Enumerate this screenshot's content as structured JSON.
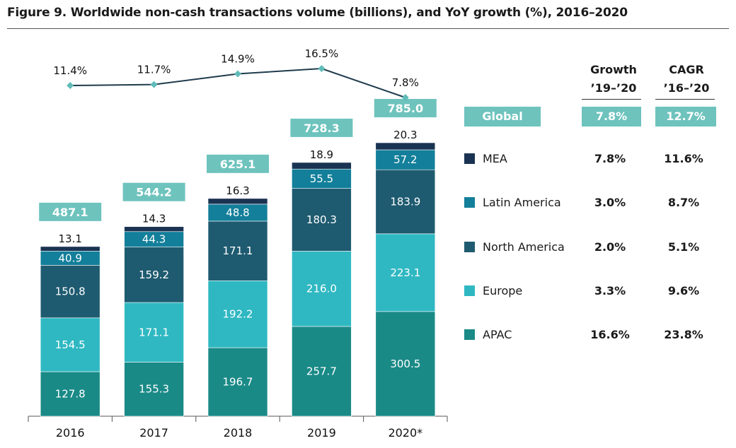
{
  "title": "Figure 9. Worldwide non-cash transactions volume (billions), and YoY growth (%), 2016–2020",
  "colors": {
    "apac": "#1a8a87",
    "europe": "#2fb8c2",
    "north_america": "#1f5b70",
    "latin_america": "#137f9a",
    "mea": "#1a3352",
    "total_box": "#6ec3bd",
    "growth_line": "#1f3b4d",
    "growth_marker": "#5fbcb8"
  },
  "side_table": {
    "growth_header": [
      "Growth",
      "’19–’20"
    ],
    "cagr_header": [
      "CAGR",
      "’16–’20"
    ],
    "global": {
      "label": "Global",
      "growth": "7.8%",
      "cagr": "12.7%"
    },
    "regions": [
      {
        "name": "MEA",
        "growth": "7.8%",
        "cagr": "11.6%",
        "color_key": "mea"
      },
      {
        "name": "Latin America",
        "growth": "3.0%",
        "cagr": "8.7%",
        "color_key": "latin_america"
      },
      {
        "name": "North America",
        "growth": "2.0%",
        "cagr": "5.1%",
        "color_key": "north_america"
      },
      {
        "name": "Europe",
        "growth": "3.3%",
        "cagr": "9.6%",
        "color_key": "europe"
      },
      {
        "name": "APAC",
        "growth": "16.6%",
        "cagr": "23.8%",
        "color_key": "apac"
      }
    ]
  },
  "chart_data": {
    "type": "bar",
    "stacked": true,
    "categories": [
      "2016",
      "2017",
      "2018",
      "2019",
      "2020*"
    ],
    "series": [
      {
        "name": "APAC",
        "color_key": "apac",
        "values": [
          127.8,
          155.3,
          196.7,
          257.7,
          300.5
        ]
      },
      {
        "name": "Europe",
        "color_key": "europe",
        "values": [
          154.5,
          171.1,
          192.2,
          216.0,
          223.1
        ]
      },
      {
        "name": "North America",
        "color_key": "north_america",
        "values": [
          150.8,
          159.2,
          171.1,
          180.3,
          183.9
        ]
      },
      {
        "name": "Latin America",
        "color_key": "latin_america",
        "values": [
          40.9,
          44.3,
          48.8,
          55.5,
          57.2
        ]
      },
      {
        "name": "MEA",
        "color_key": "mea",
        "values": [
          13.1,
          14.3,
          16.3,
          18.9,
          20.3
        ]
      }
    ],
    "totals": [
      "487.1",
      "544.2",
      "625.1",
      "728.3",
      "785.0"
    ],
    "value_labels": [
      [
        "127.8",
        "155.3",
        "196.7",
        "257.7",
        "300.5"
      ],
      [
        "154.5",
        "171.1",
        "192.2",
        "216.0",
        "223.1"
      ],
      [
        "150.8",
        "159.2",
        "171.1",
        "180.3",
        "183.9"
      ],
      [
        "40.9",
        "44.3",
        "48.8",
        "55.5",
        "57.2"
      ],
      [
        "13.1",
        "14.3",
        "16.3",
        "18.9",
        "20.3"
      ]
    ],
    "growth": {
      "type": "line",
      "values": [
        11.4,
        11.7,
        14.9,
        16.5,
        7.8
      ],
      "labels": [
        "11.4%",
        "11.7%",
        "14.9%",
        "16.5%",
        "7.8%"
      ]
    },
    "ylim": [
      0,
      785
    ]
  }
}
